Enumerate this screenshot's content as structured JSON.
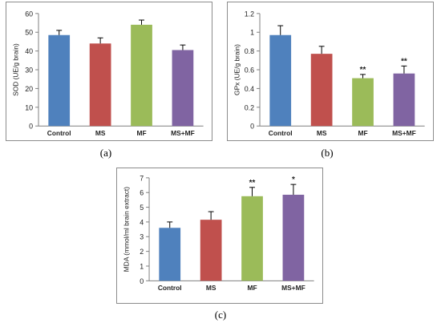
{
  "chart_data": [
    {
      "id": "a",
      "type": "bar",
      "caption": "(a)",
      "ylabel": "SOD (UE/g brain)",
      "ylim": [
        0,
        60
      ],
      "yticks": [
        "0",
        "10",
        "20",
        "30",
        "40",
        "50",
        "60"
      ],
      "categories": [
        "Control",
        "MS",
        "MF",
        "MS+MF"
      ],
      "values": [
        48.5,
        44,
        54,
        40.5
      ],
      "errors": [
        2.5,
        3,
        2.5,
        2.7
      ],
      "annotations": [
        "",
        "",
        "",
        ""
      ],
      "colors": [
        "#4f81bd",
        "#c0504d",
        "#9bbb59",
        "#8064a2"
      ]
    },
    {
      "id": "b",
      "type": "bar",
      "caption": "(b)",
      "ylabel": "GPx (UE/g brain)",
      "ylim": [
        0,
        1.2
      ],
      "yticks": [
        "0",
        "0.2",
        "0.4",
        "0.6",
        "0.8",
        "1",
        "1.2"
      ],
      "categories": [
        "Control",
        "MS",
        "MF",
        "MS+MF"
      ],
      "values": [
        0.97,
        0.77,
        0.51,
        0.56
      ],
      "errors": [
        0.1,
        0.08,
        0.04,
        0.08
      ],
      "annotations": [
        "",
        "",
        "**",
        "**"
      ],
      "colors": [
        "#4f81bd",
        "#c0504d",
        "#9bbb59",
        "#8064a2"
      ]
    },
    {
      "id": "c",
      "type": "bar",
      "caption": "(c)",
      "ylabel": "MDA (mmol/ml brain extract)",
      "ylim": [
        0,
        7
      ],
      "yticks": [
        "0",
        "1",
        "2",
        "3",
        "4",
        "5",
        "6",
        "7"
      ],
      "categories": [
        "Control",
        "MS",
        "MF",
        "MS+MF"
      ],
      "values": [
        3.6,
        4.15,
        5.75,
        5.85
      ],
      "errors": [
        0.4,
        0.55,
        0.6,
        0.7
      ],
      "annotations": [
        "",
        "",
        "**",
        "*"
      ],
      "colors": [
        "#4f81bd",
        "#c0504d",
        "#9bbb59",
        "#8064a2"
      ]
    }
  ]
}
